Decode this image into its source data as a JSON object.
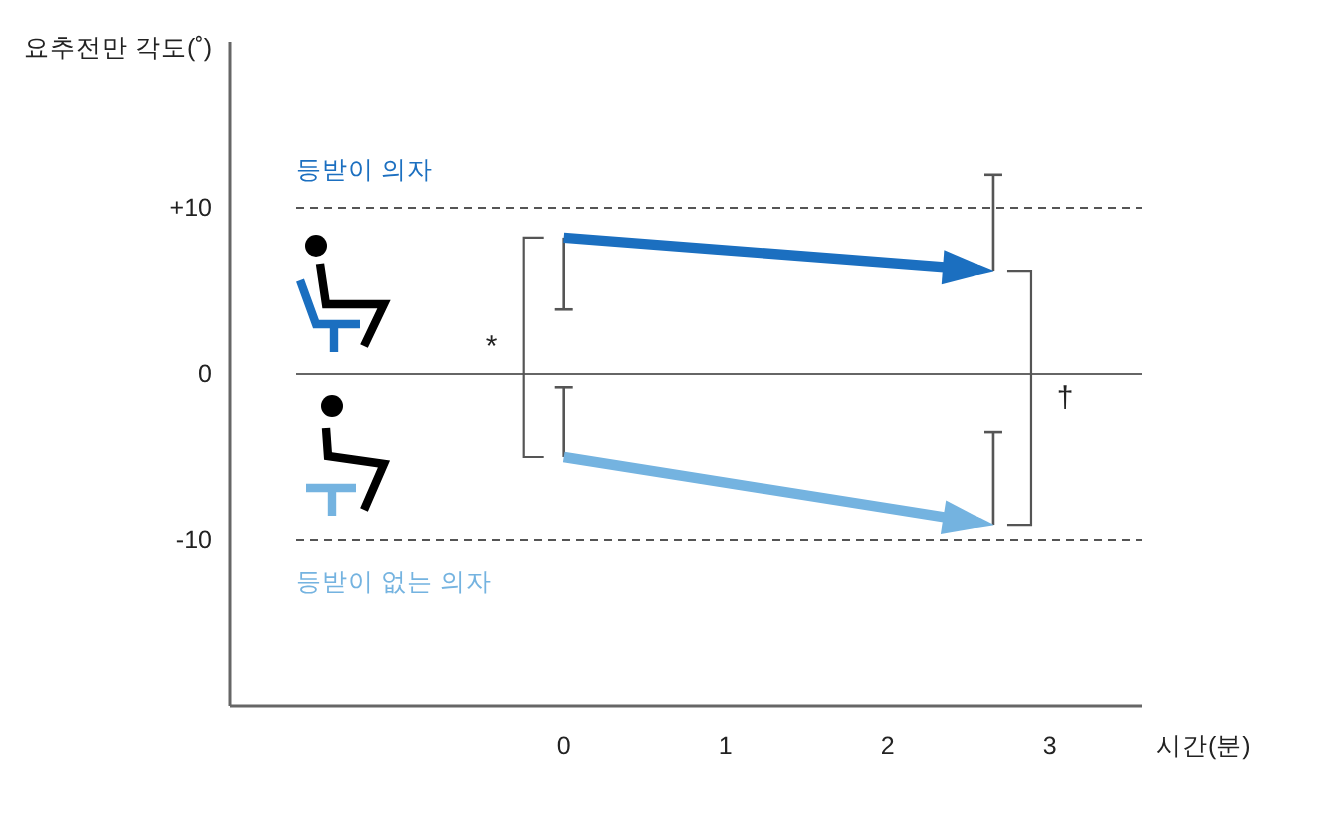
{
  "chart_data": {
    "type": "line",
    "xlabel": "시간(분)",
    "ylabel": "요추전만 각도(˚)",
    "x": [
      0,
      2.65
    ],
    "xlim": [
      -2.06,
      3.57
    ],
    "xticks": [
      0,
      1,
      2,
      3
    ],
    "ylim": [
      -20,
      20
    ],
    "yticks": [
      {
        "value": 10,
        "label": "+10"
      },
      0,
      -10
    ],
    "series": [
      {
        "name": "등받이 의자",
        "color": "#1b6fc0",
        "values": [
          8.2,
          6.2
        ],
        "errors": [
          [
            3.9,
            8.2
          ],
          [
            6.2,
            12.0
          ]
        ]
      },
      {
        "name": "등받이 없는 의자",
        "color": "#74b3e0",
        "values": [
          -5.0,
          -9.1
        ],
        "errors": [
          [
            -5.0,
            -0.8
          ],
          [
            -9.1,
            -3.5
          ]
        ]
      }
    ],
    "ref_lines": [
      {
        "axis": "y",
        "value": 10,
        "color": "#555555",
        "line_style": "dashed"
      },
      {
        "axis": "y",
        "value": 0,
        "color": "#666666",
        "line_style": "solid"
      },
      {
        "axis": "y",
        "value": -10,
        "color": "#555555",
        "line_style": "dashed"
      }
    ],
    "annotations": [
      "*",
      "†"
    ]
  }
}
